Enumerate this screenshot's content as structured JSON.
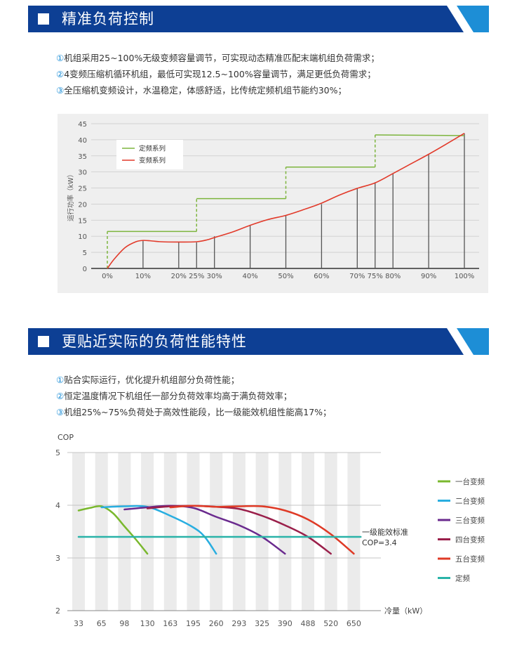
{
  "section1": {
    "title": "精准负荷控制",
    "bullets": [
      {
        "num": "①",
        "text": "机组采用25~100%无级变频容量调节，可实现动态精准匹配末端机组负荷需求；"
      },
      {
        "num": "②",
        "text": "4变频压缩机循环机组，最低可实现12.5~100%容量调节，满足更低负荷需求；"
      },
      {
        "num": "③",
        "text": "全压缩机变频设计，水温稳定，体感舒适，比传统定频机组节能约30%；"
      }
    ]
  },
  "section2": {
    "title": "更贴近实际的负荷性能特性",
    "bullets": [
      {
        "num": "①",
        "text": "贴合实际运行，优化提升机组部分负荷性能；"
      },
      {
        "num": "②",
        "text": "恒定温度情况下机组任一部分负荷效率均高于满负荷效率；"
      },
      {
        "num": "③",
        "text": "机组25%~75%负荷处于高效性能段，比一级能效机组性能高17%；"
      }
    ]
  },
  "chart_data": [
    {
      "type": "line",
      "ylabel": "运行功率（kW）",
      "ylim": [
        0,
        45
      ],
      "yticks": [
        0,
        5,
        10,
        15,
        20,
        25,
        30,
        35,
        40,
        45
      ],
      "categories": [
        "0%",
        "10%",
        "20%",
        "25%",
        "30%",
        "40%",
        "50%",
        "60%",
        "70%",
        "75%",
        "80%",
        "90%",
        "100%"
      ],
      "bar_values": [
        0,
        8.5,
        8.1,
        8.1,
        10,
        13.5,
        16.5,
        20,
        24.8,
        26.8,
        29.5,
        35.3,
        42
      ],
      "series": [
        {
          "name": "定频系列",
          "color": "#7db53e",
          "dashed_risers": true,
          "steps": [
            {
              "from": 0,
              "to": 25,
              "value": 11.5
            },
            {
              "from": 25,
              "to": 50,
              "value": 21.7
            },
            {
              "from": 50,
              "to": 75,
              "value": 31.5
            },
            {
              "from": 75,
              "to": 100,
              "value": 41.5
            }
          ],
          "end_value": 41.3
        },
        {
          "name": "变频系列",
          "color": "#e23a2a",
          "x": [
            0,
            2,
            5,
            8,
            10,
            12,
            15,
            20,
            25,
            28,
            30,
            35,
            40,
            45,
            50,
            55,
            60,
            65,
            70,
            75,
            80,
            85,
            90,
            95,
            100
          ],
          "y": [
            0,
            3,
            6.5,
            8.3,
            8.7,
            8.6,
            8.3,
            8.2,
            8.3,
            8.9,
            9.6,
            11.3,
            13.4,
            15.2,
            16.5,
            18.3,
            20.3,
            22.8,
            24.9,
            26.6,
            29.5,
            32.5,
            35.5,
            38.7,
            42
          ]
        }
      ]
    },
    {
      "type": "line",
      "ylabel": "COP",
      "xlabel": "冷量（kW）",
      "ylim": [
        2,
        5
      ],
      "yticks": [
        2,
        3,
        4,
        5
      ],
      "categories": [
        "33",
        "65",
        "98",
        "130",
        "163",
        "195",
        "260",
        "293",
        "325",
        "390",
        "488",
        "520",
        "650"
      ],
      "series": [
        {
          "name": "一台变频",
          "color": "#7ab82e",
          "x": [
            0,
            0.5,
            1,
            1.5,
            2,
            2.5,
            3
          ],
          "y": [
            3.9,
            3.95,
            3.98,
            3.85,
            3.6,
            3.35,
            3.08
          ]
        },
        {
          "name": "二台变频",
          "color": "#29aee0",
          "x": [
            1,
            2,
            3,
            4,
            5,
            5.5,
            6
          ],
          "y": [
            3.96,
            3.98,
            3.97,
            3.8,
            3.58,
            3.4,
            3.08
          ]
        },
        {
          "name": "三台变频",
          "color": "#6a2a8e",
          "x": [
            2,
            3,
            4,
            5,
            6,
            7,
            8,
            9
          ],
          "y": [
            3.92,
            3.96,
            3.99,
            3.95,
            3.78,
            3.62,
            3.4,
            3.08
          ]
        },
        {
          "name": "四台变频",
          "color": "#9a1f4a",
          "x": [
            3,
            4,
            5,
            6,
            7,
            8,
            9,
            10,
            11
          ],
          "y": [
            3.94,
            3.98,
            3.99,
            3.97,
            3.93,
            3.8,
            3.62,
            3.4,
            3.08
          ]
        },
        {
          "name": "五台变频",
          "color": "#df3a26",
          "x": [
            4,
            5,
            6,
            7,
            8,
            9,
            10,
            11,
            12
          ],
          "y": [
            3.96,
            3.99,
            3.97,
            3.98,
            3.98,
            3.9,
            3.73,
            3.45,
            3.08
          ]
        },
        {
          "name": "定频",
          "color": "#2ab3a8",
          "x": [
            0,
            12.3
          ],
          "y": [
            3.4,
            3.4
          ]
        }
      ],
      "annotation": {
        "line1": "一级能效标准",
        "line2": "COP=3.4"
      }
    }
  ]
}
